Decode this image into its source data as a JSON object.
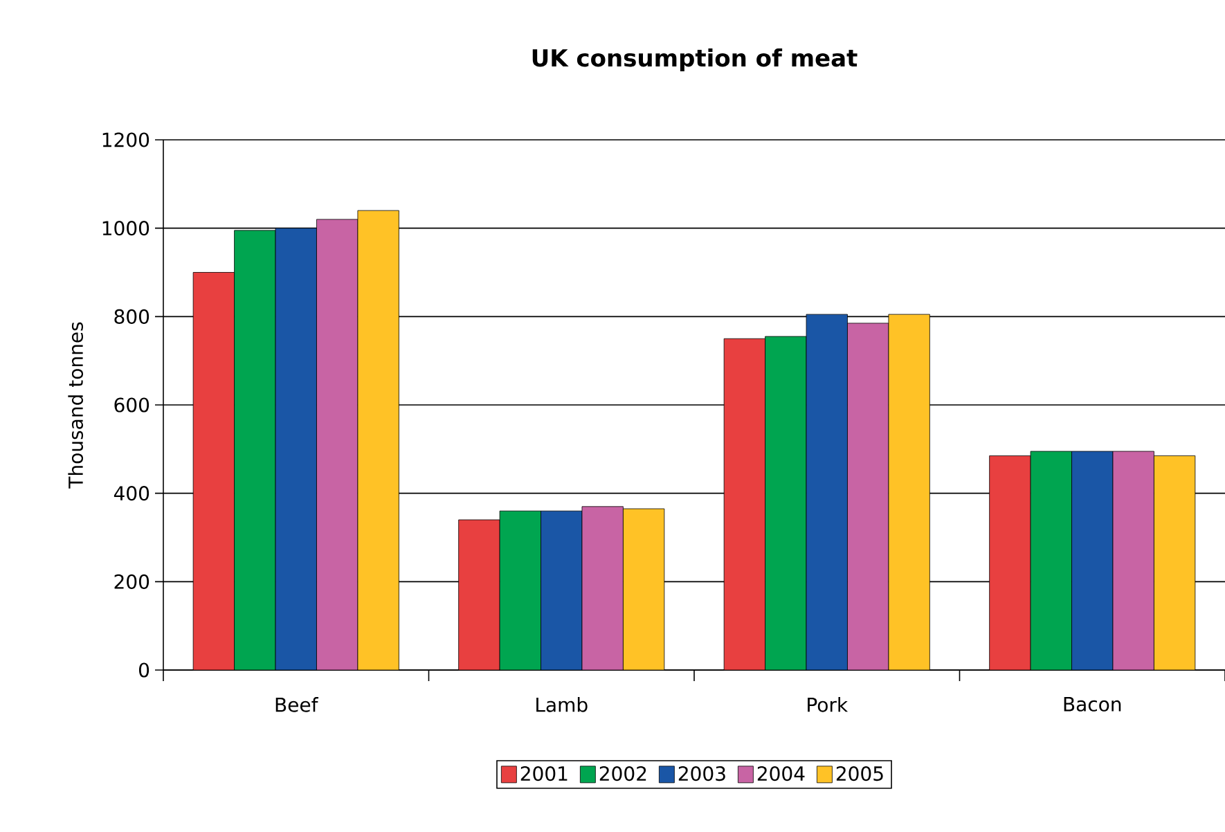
{
  "chart_data": {
    "type": "bar",
    "title": "UK consumption of meat",
    "ylabel": "Thousand tonnes",
    "categories": [
      "Beef",
      "Lamb",
      "Pork",
      "Bacon"
    ],
    "series": [
      {
        "name": "2001",
        "color": "#e84040",
        "values": [
          900,
          340,
          750,
          485
        ]
      },
      {
        "name": "2002",
        "color": "#00a550",
        "values": [
          995,
          360,
          755,
          495
        ]
      },
      {
        "name": "2003",
        "color": "#1a56a6",
        "values": [
          1000,
          360,
          805,
          495
        ]
      },
      {
        "name": "2004",
        "color": "#c864a4",
        "values": [
          1020,
          370,
          785,
          495
        ]
      },
      {
        "name": "2005",
        "color": "#ffc226",
        "values": [
          1040,
          365,
          805,
          485
        ]
      }
    ],
    "ylim": [
      0,
      1200
    ],
    "yticks": [
      0,
      200,
      400,
      600,
      800,
      1000,
      1200
    ],
    "grid": "y",
    "legend": "bottom"
  }
}
